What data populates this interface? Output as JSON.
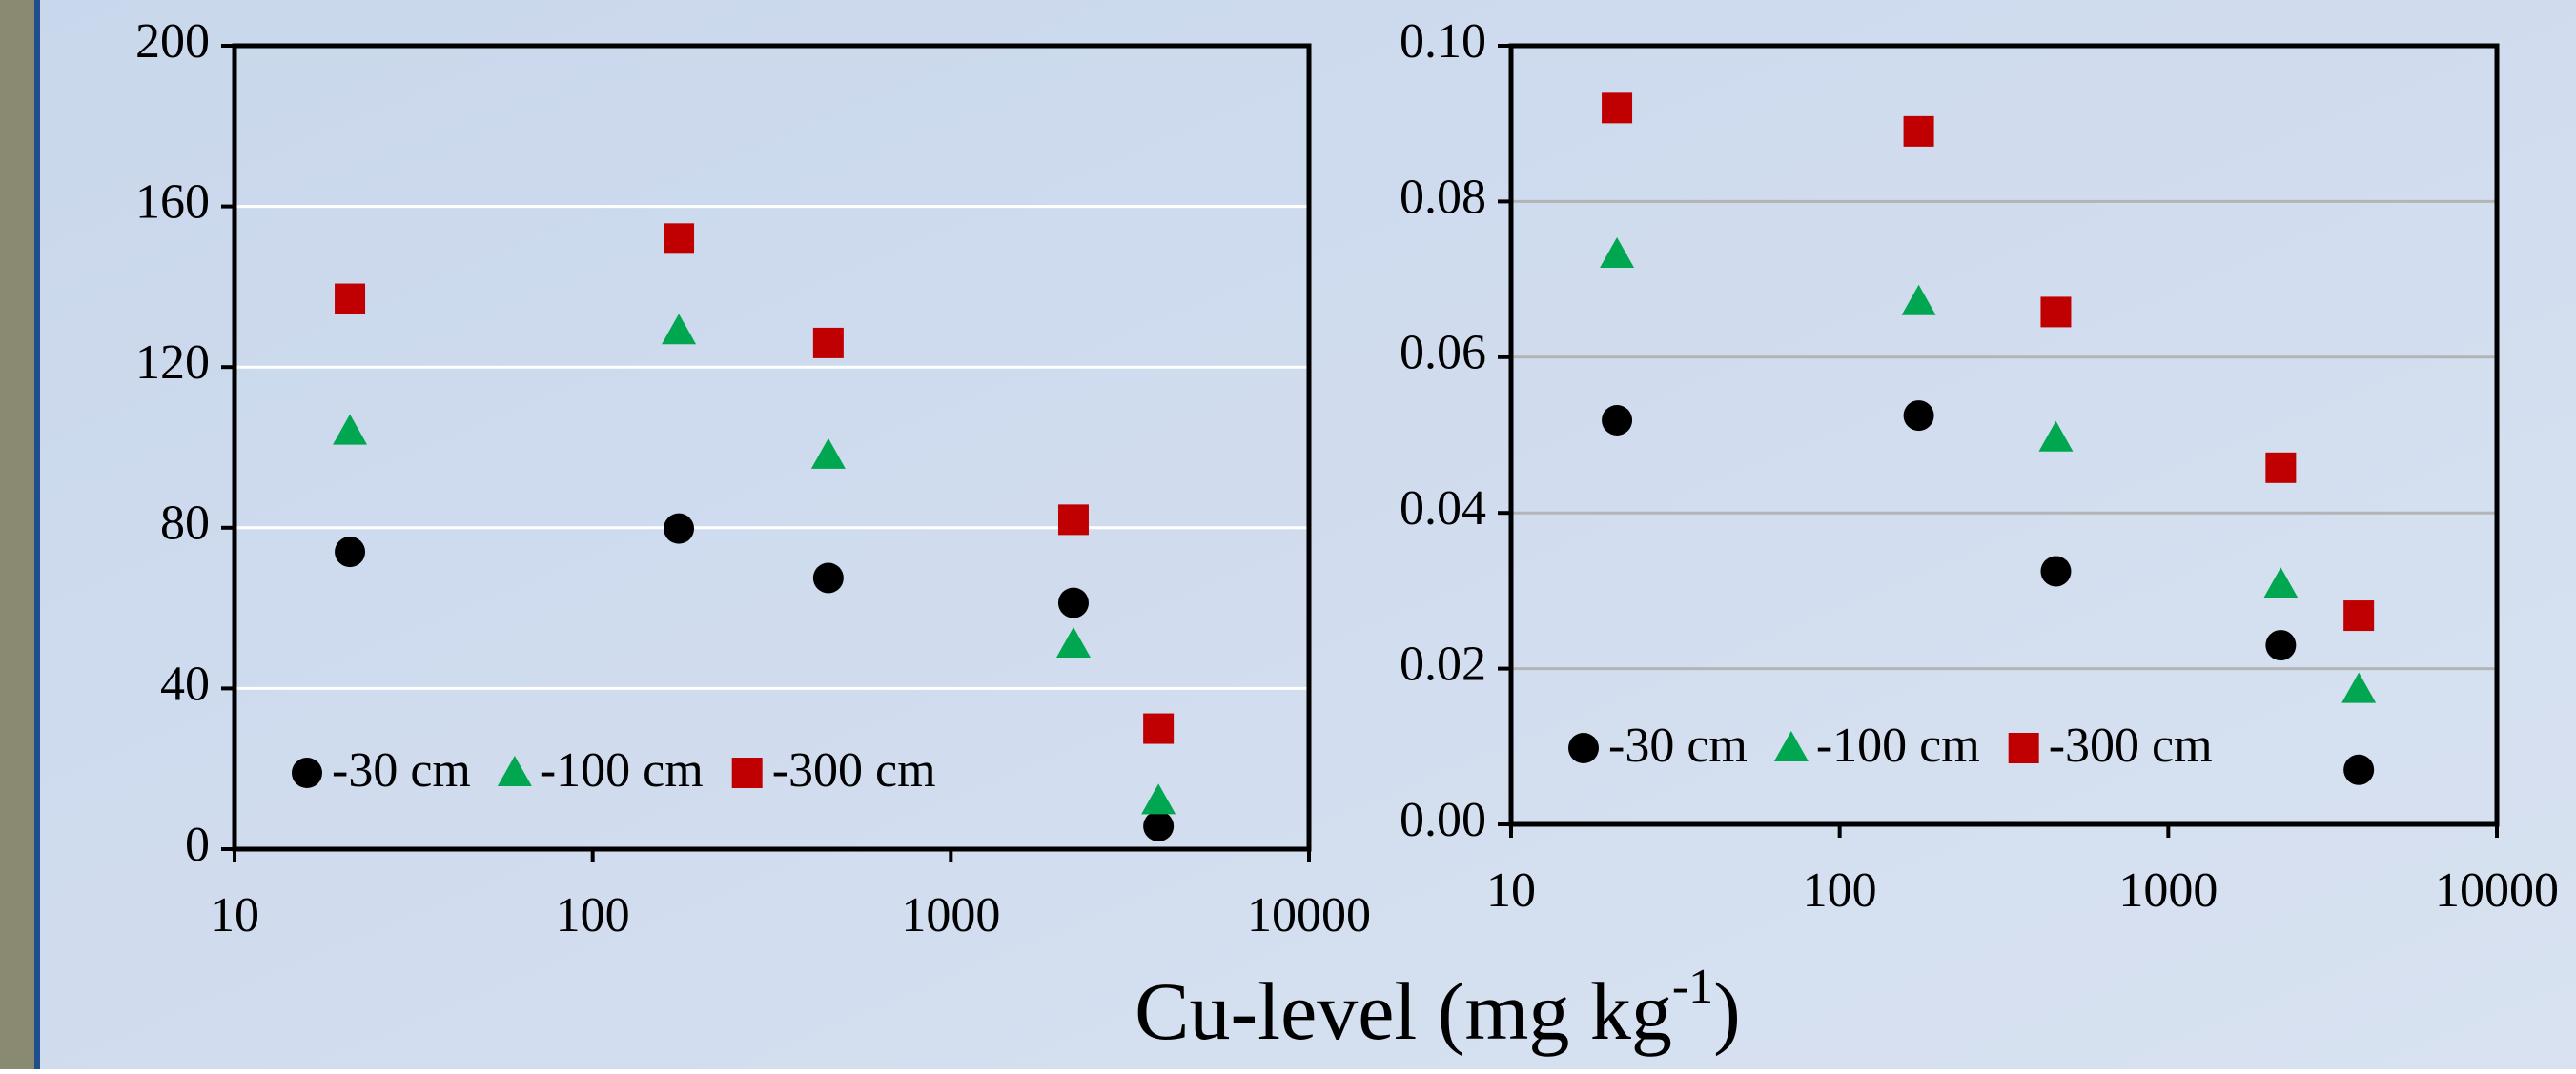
{
  "xlabel": [
    "Cu-level (mg kg",
    "-1",
    ")"
  ],
  "chart_data": [
    {
      "type": "scatter",
      "xlog": true,
      "grid": true,
      "grid_color": "#ffffff",
      "legend": "lower left",
      "xlim": [
        10,
        10000
      ],
      "xticks": [
        10,
        100,
        1000,
        10000
      ],
      "ylim": [
        0,
        200
      ],
      "yticks": [
        0,
        40,
        80,
        120,
        160,
        200
      ],
      "series": [
        {
          "name": "-30 cm",
          "color": "#000000",
          "marker": "circle",
          "x": [
            21,
            174,
            455,
            2200,
            3800
          ],
          "values": [
            74,
            79.8,
            67.5,
            61.3,
            5.7
          ]
        },
        {
          "name": "-100 cm",
          "color": "#00a650",
          "marker": "triangle",
          "x": [
            21,
            174,
            455,
            2200,
            3800
          ],
          "values": [
            104,
            129,
            98,
            51,
            12
          ]
        },
        {
          "name": "-300 cm",
          "color": "#c00000",
          "marker": "square",
          "x": [
            21,
            174,
            455,
            2200,
            3800
          ],
          "values": [
            137,
            152,
            126,
            82,
            30
          ]
        }
      ]
    },
    {
      "type": "scatter",
      "xlog": true,
      "grid": true,
      "grid_color": "#b4b4b4",
      "legend": "lower left",
      "xlim": [
        10,
        10000
      ],
      "xticks": [
        10,
        100,
        1000,
        10000
      ],
      "ylim": [
        0,
        0.1
      ],
      "yticks": [
        {
          "value": 0,
          "label": "0.00"
        },
        0.02,
        0.04,
        0.06,
        0.08,
        {
          "value": 0.1,
          "label": "0.10"
        }
      ],
      "series": [
        {
          "name": "-30 cm",
          "color": "#000000",
          "marker": "circle",
          "x": [
            21,
            174,
            455,
            2200,
            3800
          ],
          "values": [
            0.0519,
            0.0525,
            0.0325,
            0.023,
            0.007
          ]
        },
        {
          "name": "-100 cm",
          "color": "#00a650",
          "marker": "triangle",
          "x": [
            21,
            174,
            455,
            2200,
            3800
          ],
          "values": [
            0.0732,
            0.0671,
            0.0496,
            0.0308,
            0.0173
          ]
        },
        {
          "name": "-300 cm",
          "color": "#c00000",
          "marker": "square",
          "x": [
            21,
            174,
            455,
            2200,
            3800
          ],
          "values": [
            0.092,
            0.089,
            0.0658,
            0.0458,
            0.0268
          ]
        }
      ]
    }
  ]
}
